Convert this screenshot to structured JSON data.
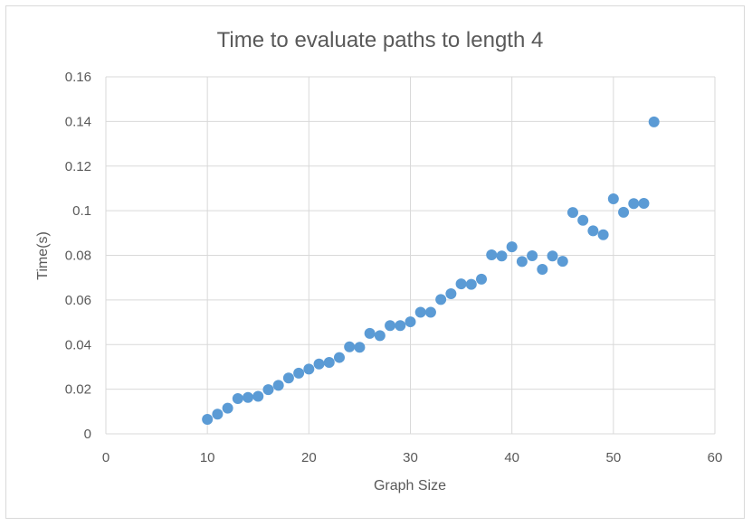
{
  "chart_data": {
    "type": "scatter",
    "title": "Time to evaluate paths to length 4",
    "xlabel": "Graph Size",
    "ylabel": "Time(s)",
    "xlim": [
      0,
      60
    ],
    "ylim": [
      0,
      0.16
    ],
    "x_ticks": [
      "0",
      "10",
      "20",
      "30",
      "40",
      "50",
      "60"
    ],
    "y_ticks": [
      "0",
      "0.02",
      "0.04",
      "0.06",
      "0.08",
      "0.1",
      "0.12",
      "0.14",
      "0.16"
    ],
    "grid": true,
    "legend": "none",
    "colors": {
      "marker": "#5b9bd5",
      "grid": "#d9d9d9",
      "text": "#595959"
    },
    "series": [
      {
        "x": [
          10,
          11,
          12,
          13,
          14,
          15,
          16,
          17,
          18,
          19,
          20,
          21,
          22,
          23,
          24,
          25,
          26,
          27,
          28,
          29,
          30,
          31,
          32,
          33,
          34,
          35,
          36,
          37,
          38,
          39,
          40,
          41,
          42,
          43,
          44,
          45,
          46,
          47,
          48,
          49,
          50,
          51,
          52,
          53,
          54
        ],
        "y": [
          0.0065,
          0.0088,
          0.0115,
          0.0158,
          0.0163,
          0.0168,
          0.0198,
          0.0217,
          0.025,
          0.0272,
          0.029,
          0.0313,
          0.032,
          0.0342,
          0.039,
          0.0388,
          0.045,
          0.044,
          0.0485,
          0.0485,
          0.0502,
          0.0545,
          0.0545,
          0.0602,
          0.0628,
          0.0672,
          0.067,
          0.0693,
          0.0802,
          0.0797,
          0.0838,
          0.0772,
          0.0798,
          0.0737,
          0.0797,
          0.0773,
          0.0992,
          0.0957,
          0.091,
          0.0892,
          0.1053,
          0.0993,
          0.1032,
          0.1033,
          0.1398
        ]
      }
    ]
  }
}
